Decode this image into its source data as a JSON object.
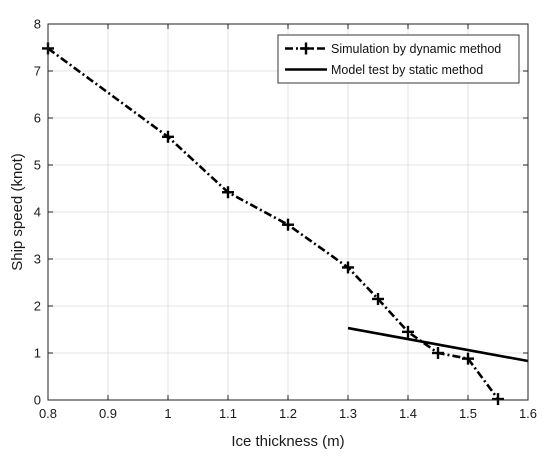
{
  "chart_data": {
    "type": "line",
    "xlabel": "Ice thickness (m)",
    "ylabel": "Ship speed (knot)",
    "xlim": [
      0.8,
      1.6
    ],
    "ylim": [
      0,
      8
    ],
    "x_ticks": [
      "0.8",
      "0.9",
      "1",
      "1.1",
      "1.2",
      "1.3",
      "1.4",
      "1.5",
      "1.6"
    ],
    "y_ticks": [
      "0",
      "1",
      "2",
      "3",
      "4",
      "5",
      "6",
      "7",
      "8"
    ],
    "grid": true,
    "legend_position": "top-right",
    "series": [
      {
        "name": "Simulation by dynamic method",
        "style": "dash-dot with plus markers",
        "color": "#000000",
        "x": [
          0.8,
          1.0,
          1.1,
          1.2,
          1.3,
          1.35,
          1.4,
          1.45,
          1.5,
          1.55
        ],
        "y": [
          7.48,
          5.6,
          4.42,
          3.73,
          2.82,
          2.15,
          1.45,
          1.0,
          0.88,
          0.02
        ]
      },
      {
        "name": "Model test by static method",
        "style": "solid",
        "color": "#000000",
        "x": [
          1.3,
          1.6
        ],
        "y": [
          1.53,
          0.83
        ]
      }
    ]
  }
}
